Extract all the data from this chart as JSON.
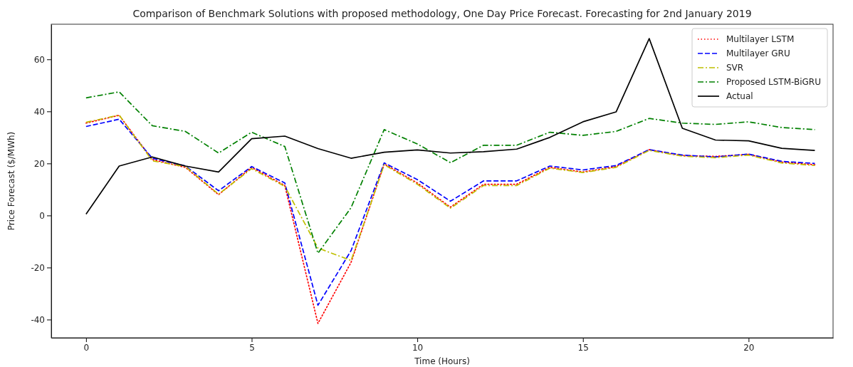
{
  "chart_data": {
    "type": "line",
    "title": "Comparison of Benchmark Solutions with proposed methodology, One Day Price Forecast. Forecasting for 2nd January 2019",
    "xlabel": "Time (Hours)",
    "ylabel": "Price Forecast ($/MWh)",
    "x": [
      0,
      1,
      2,
      3,
      4,
      5,
      6,
      7,
      8,
      9,
      10,
      11,
      12,
      13,
      14,
      15,
      16,
      17,
      18,
      19,
      20,
      21,
      22
    ],
    "xlim": [
      -1.05,
      22.55
    ],
    "xticks": [
      0,
      5,
      10,
      15,
      20
    ],
    "ylim": [
      -47,
      73.5
    ],
    "yticks": [
      -40,
      -20,
      0,
      20,
      40,
      60
    ],
    "legend": "top right",
    "grid": false,
    "series": [
      {
        "name": "Multilayer LSTM",
        "color": "#ff0000",
        "line_style": "dotted",
        "values": [
          35.5,
          38.5,
          21.5,
          18.5,
          8,
          18.5,
          11.5,
          -41.5,
          -18,
          19.8,
          12.5,
          3.2,
          12,
          12,
          18.5,
          16.7,
          18.8,
          25.3,
          23,
          22.7,
          23.5,
          20.5,
          19.5
        ]
      },
      {
        "name": "Multilayer GRU",
        "color": "#0000ff",
        "line_style": "dashed",
        "values": [
          34.2,
          37,
          22,
          19,
          9.5,
          18.8,
          12.5,
          -34.5,
          -13.5,
          20.2,
          13.8,
          5.5,
          13.3,
          13.3,
          19,
          17.5,
          19.2,
          25.3,
          23.2,
          22.5,
          23.6,
          20.8,
          20
        ]
      },
      {
        "name": "SVR",
        "color": "#bfbf00",
        "line_style": "dashdot",
        "values": [
          35.8,
          38.6,
          21,
          18.8,
          8.2,
          18,
          11.2,
          -12.5,
          -17.3,
          19.5,
          12,
          2.8,
          11.5,
          11.5,
          18.2,
          16.5,
          18.5,
          25,
          22.8,
          22.2,
          23.2,
          20.2,
          19.2
        ]
      },
      {
        "name": "Proposed LSTM-BiGRU",
        "color": "#008000",
        "line_style": "dashdot",
        "values": [
          45.2,
          47.5,
          34.5,
          32.3,
          24,
          32,
          26.5,
          -14.5,
          3,
          33,
          27.5,
          20.3,
          27,
          27,
          32,
          30.8,
          32.3,
          37.3,
          35.5,
          35,
          36,
          33.8,
          33
        ]
      },
      {
        "name": "Actual",
        "color": "#000000",
        "line_style": "solid",
        "values": [
          0.5,
          19,
          22.5,
          19,
          16.7,
          29.5,
          30.5,
          25.7,
          22,
          24.3,
          25.2,
          24,
          24.5,
          25.5,
          30,
          36,
          39.8,
          68,
          33.5,
          29,
          28.7,
          25.8,
          25
        ]
      }
    ]
  }
}
